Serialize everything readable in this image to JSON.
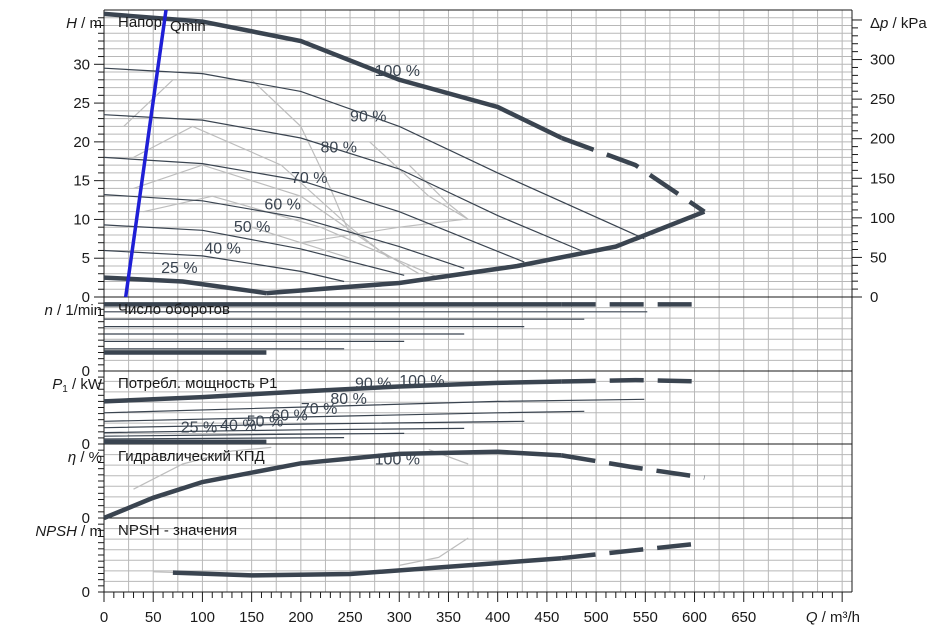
{
  "chart_data": {
    "type": "line",
    "x_axis": {
      "label_var": "Q",
      "label_unit": "m³/h",
      "ticks": [
        0,
        50,
        100,
        150,
        200,
        250,
        300,
        350,
        400,
        450,
        500,
        550,
        600,
        650
      ],
      "range": [
        0,
        760
      ]
    },
    "panels": [
      {
        "id": "head",
        "title": "Напор",
        "ylabel_var": "H",
        "ylabel_unit": "m",
        "yrange": [
          0,
          37
        ],
        "yticks": [
          0,
          5,
          10,
          15,
          20,
          25,
          30
        ],
        "right_axis": {
          "label_var": "Δp",
          "label_unit": "kPa",
          "ticks": [
            0,
            50,
            100,
            150,
            200,
            250,
            300
          ],
          "kpa_per_m": 9.8
        },
        "annotation": "Qmin",
        "qmin_line": [
          [
            22,
            0
          ],
          [
            63,
            37
          ]
        ],
        "series": [
          {
            "label": "100 %",
            "style": "thick",
            "points": [
              [
                0,
                36.5
              ],
              [
                100,
                35.5
              ],
              [
                200,
                33
              ],
              [
                300,
                28
              ],
              [
                400,
                24.5
              ],
              [
                465,
                20.5
              ]
            ],
            "dashed": [
              [
                465,
                20.5
              ],
              [
                540,
                17
              ],
              [
                610,
                11
              ]
            ]
          },
          {
            "label": "90 %",
            "style": "thin",
            "points": [
              [
                0,
                29.5
              ],
              [
                100,
                28.8
              ],
              [
                200,
                26.5
              ],
              [
                300,
                22
              ],
              [
                400,
                16
              ],
              [
                549,
                7.5
              ]
            ]
          },
          {
            "label": "80 %",
            "style": "thin",
            "points": [
              [
                0,
                23.5
              ],
              [
                100,
                22.8
              ],
              [
                200,
                20.5
              ],
              [
                300,
                16.5
              ],
              [
                400,
                10.5
              ],
              [
                488,
                5.8
              ]
            ]
          },
          {
            "label": "70 %",
            "style": "thin",
            "points": [
              [
                0,
                18
              ],
              [
                100,
                17.2
              ],
              [
                200,
                15
              ],
              [
                300,
                11
              ],
              [
                427,
                4.5
              ]
            ]
          },
          {
            "label": "60 %",
            "style": "thin",
            "points": [
              [
                0,
                13.2
              ],
              [
                100,
                12.4
              ],
              [
                200,
                10.2
              ],
              [
                300,
                6.5
              ],
              [
                366,
                3.7
              ]
            ]
          },
          {
            "label": "50 %",
            "style": "thin",
            "points": [
              [
                0,
                9.3
              ],
              [
                100,
                8.6
              ],
              [
                200,
                6.2
              ],
              [
                305,
                2.8
              ]
            ]
          },
          {
            "label": "40 %",
            "style": "thin",
            "points": [
              [
                0,
                6
              ],
              [
                100,
                5.3
              ],
              [
                200,
                3.3
              ],
              [
                244,
                2
              ]
            ]
          },
          {
            "label": "25 %",
            "style": "thick",
            "points": [
              [
                0,
                2.5
              ],
              [
                80,
                2
              ],
              [
                165,
                0.5
              ]
            ]
          },
          {
            "label": "",
            "style": "thick",
            "points": [
              [
                165,
                0.5
              ],
              [
                300,
                1.8
              ],
              [
                420,
                4
              ],
              [
                520,
                6.5
              ],
              [
                610,
                11
              ]
            ]
          }
        ],
        "grey_curves": [
          [
            [
              20,
              22
            ],
            [
              70,
              28
            ],
            [
              150,
              28
            ],
            [
              200,
              22
            ],
            [
              230,
              14
            ],
            [
              250,
              8
            ]
          ],
          [
            [
              30,
              18
            ],
            [
              90,
              22
            ],
            [
              180,
              17
            ],
            [
              250,
              9
            ],
            [
              290,
              5
            ]
          ],
          [
            [
              30,
              14
            ],
            [
              100,
              17
            ],
            [
              200,
              13
            ],
            [
              280,
              6
            ],
            [
              320,
              3
            ]
          ],
          [
            [
              40,
              11
            ],
            [
              110,
              13
            ],
            [
              220,
              9
            ],
            [
              340,
              2.5
            ]
          ],
          [
            [
              270,
              20
            ],
            [
              330,
              13
            ],
            [
              370,
              10
            ]
          ],
          [
            [
              310,
              17
            ],
            [
              350,
              12
            ],
            [
              370,
              10
            ]
          ],
          [
            [
              200,
              7
            ],
            [
              300,
              9
            ],
            [
              365,
              10
            ]
          ],
          [
            [
              150,
              9
            ],
            [
              250,
              5
            ]
          ]
        ]
      },
      {
        "id": "speed",
        "title": "Число оборотов",
        "ylabel_var": "n",
        "ylabel_unit": "1/min",
        "yrange": [
          0,
          10
        ],
        "yticks": [
          0
        ],
        "series": [
          {
            "style": "thick",
            "y": 9,
            "x_end": 465,
            "dashed_to": 610
          },
          {
            "style": "thin",
            "y": 8,
            "x_end": 552
          },
          {
            "style": "thin",
            "y": 7,
            "x_end": 488
          },
          {
            "style": "thin",
            "y": 6,
            "x_end": 427
          },
          {
            "style": "thin",
            "y": 5,
            "x_end": 366
          },
          {
            "style": "thin",
            "y": 4,
            "x_end": 305
          },
          {
            "style": "thin",
            "y": 3,
            "x_end": 244
          },
          {
            "style": "thick",
            "y": 2.5,
            "x_end": 165
          }
        ]
      },
      {
        "id": "power",
        "title": "Потребл. мощность P1",
        "ylabel_var": "P",
        "ylabel_sub": "1",
        "ylabel_unit": "kW",
        "yrange": [
          0,
          10
        ],
        "yticks": [
          0
        ],
        "series": [
          {
            "label": "100 %",
            "style": "thick",
            "points": [
              [
                0,
                6
              ],
              [
                100,
                6.6
              ],
              [
                200,
                7.4
              ],
              [
                300,
                8.1
              ],
              [
                400,
                8.6
              ],
              [
                465,
                8.8
              ]
            ],
            "dashed": [
              [
                465,
                8.8
              ],
              [
                540,
                9
              ],
              [
                610,
                8.8
              ]
            ]
          },
          {
            "label": "90 %",
            "style": "thin",
            "points": [
              [
                0,
                4.4
              ],
              [
                200,
                5.2
              ],
              [
                400,
                6
              ],
              [
                549,
                6.3
              ]
            ]
          },
          {
            "label": "80 %",
            "style": "thin",
            "points": [
              [
                0,
                3.2
              ],
              [
                200,
                3.8
              ],
              [
                400,
                4.4
              ],
              [
                488,
                4.6
              ]
            ]
          },
          {
            "label": "70 %",
            "style": "thin",
            "points": [
              [
                0,
                2.3
              ],
              [
                200,
                2.8
              ],
              [
                427,
                3.2
              ]
            ]
          },
          {
            "label": "60 %",
            "style": "thin",
            "points": [
              [
                0,
                1.6
              ],
              [
                200,
                2
              ],
              [
                366,
                2.2
              ]
            ]
          },
          {
            "label": "50 %",
            "style": "thin",
            "points": [
              [
                0,
                1.1
              ],
              [
                200,
                1.4
              ],
              [
                305,
                1.5
              ]
            ]
          },
          {
            "label": "40 %",
            "style": "thin",
            "points": [
              [
                0,
                0.7
              ],
              [
                244,
                0.9
              ]
            ]
          },
          {
            "label": "25 %",
            "style": "thick",
            "points": [
              [
                0,
                0.3
              ],
              [
                165,
                0.3
              ]
            ]
          }
        ],
        "label_positions": {
          "100 %": [
            300,
            8.2
          ],
          "90 %": [
            255,
            7.8
          ],
          "80 %": [
            230,
            5.6
          ],
          "70 %": [
            200,
            4.2
          ],
          "60 %": [
            170,
            3.3
          ],
          "50 %": [
            145,
            2.5
          ],
          "40 %": [
            118,
            1.9
          ],
          "25 %": [
            78,
            1.6
          ]
        }
      },
      {
        "id": "efficiency",
        "title": "Гидравлический КПД",
        "ylabel_var": "η",
        "ylabel_unit": "%",
        "yrange": [
          0,
          10
        ],
        "yticks": [
          0
        ],
        "series": [
          {
            "label": "100 %",
            "style": "thick",
            "points": [
              [
                0,
                0
              ],
              [
                50,
                2.8
              ],
              [
                100,
                5
              ],
              [
                200,
                7.6
              ],
              [
                300,
                8.9
              ],
              [
                400,
                9.2
              ],
              [
                465,
                8.7
              ]
            ],
            "dashed": [
              [
                465,
                8.7
              ],
              [
                540,
                7
              ],
              [
                610,
                5.6
              ]
            ]
          }
        ],
        "grey_curves": [
          [
            [
              30,
              4
            ],
            [
              80,
              7.5
            ],
            [
              130,
              9.3
            ],
            [
              170,
              9.8
            ]
          ],
          [
            [
              330,
              9.5
            ],
            [
              370,
              7.5
            ]
          ]
        ]
      },
      {
        "id": "npsh",
        "title": "NPSH - значения",
        "ylabel_var": "NPSH",
        "ylabel_unit": "m",
        "yrange": [
          0,
          10
        ],
        "yticks": [
          0
        ],
        "series": [
          {
            "style": "thick",
            "points": [
              [
                70,
                2.7
              ],
              [
                150,
                2.3
              ],
              [
                250,
                2.5
              ],
              [
                350,
                3.5
              ],
              [
                465,
                4.7
              ]
            ],
            "dashed": [
              [
                465,
                4.7
              ],
              [
                540,
                5.8
              ],
              [
                610,
                6.8
              ]
            ]
          }
        ],
        "grey_curves": [
          [
            [
              300,
              3.7
            ],
            [
              340,
              4.8
            ],
            [
              370,
              7.5
            ]
          ],
          [
            [
              50,
              2.8
            ],
            [
              120,
              2.5
            ],
            [
              200,
              2.6
            ]
          ]
        ]
      }
    ]
  }
}
